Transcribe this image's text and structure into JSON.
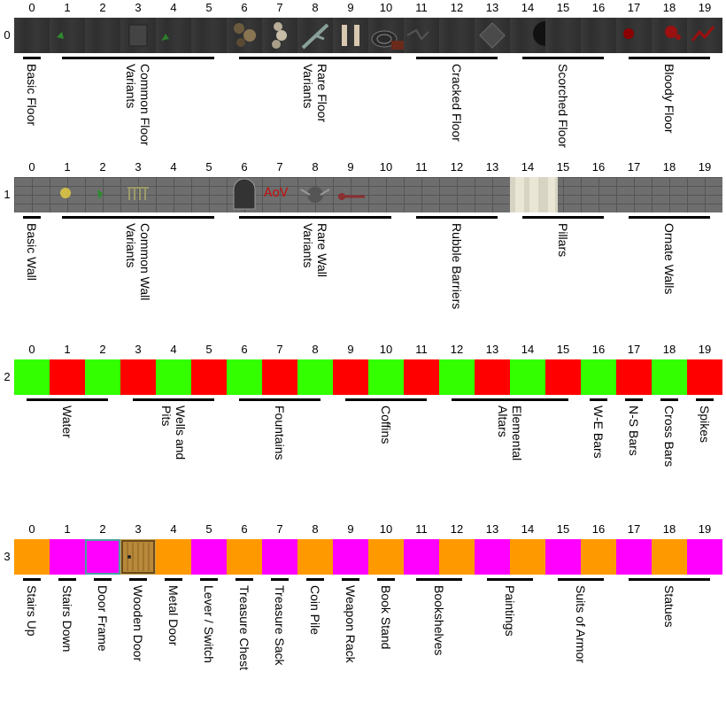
{
  "columns": [
    "0",
    "1",
    "2",
    "3",
    "4",
    "5",
    "6",
    "7",
    "8",
    "9",
    "10",
    "11",
    "12",
    "13",
    "14",
    "15",
    "16",
    "17",
    "18",
    "19"
  ],
  "rows": [
    {
      "index": "0",
      "kind": "floor",
      "groups": [
        {
          "start": 0,
          "end": 0,
          "lines": [
            "Basic Floor"
          ]
        },
        {
          "start": 1,
          "end": 5,
          "lines": [
            "Common Floor",
            "Variants"
          ]
        },
        {
          "start": 6,
          "end": 10,
          "lines": [
            "Rare Floor",
            "Variants"
          ]
        },
        {
          "start": 11,
          "end": 13,
          "lines": [
            "Cracked Floor"
          ]
        },
        {
          "start": 14,
          "end": 16,
          "lines": [
            "Scorched Floor"
          ]
        },
        {
          "start": 17,
          "end": 19,
          "lines": [
            "Bloody Floor"
          ]
        }
      ]
    },
    {
      "index": "1",
      "kind": "wall",
      "groups": [
        {
          "start": 0,
          "end": 0,
          "lines": [
            "Basic Wall"
          ]
        },
        {
          "start": 1,
          "end": 5,
          "lines": [
            "Common Wall",
            "Variants"
          ]
        },
        {
          "start": 6,
          "end": 10,
          "lines": [
            "Rare Wall",
            "Variants"
          ]
        },
        {
          "start": 11,
          "end": 13,
          "lines": [
            "Rubble Barriers"
          ]
        },
        {
          "start": 14,
          "end": 16,
          "lines": [
            "Pillars"
          ]
        },
        {
          "start": 17,
          "end": 19,
          "lines": [
            "Ornate Walls"
          ]
        }
      ]
    },
    {
      "index": "2",
      "kind": "placeholder",
      "tile_colors": [
        "#33ff00",
        "#ff0000",
        "#33ff00",
        "#ff0000",
        "#33ff00",
        "#ff0000",
        "#33ff00",
        "#ff0000",
        "#33ff00",
        "#ff0000",
        "#33ff00",
        "#ff0000",
        "#33ff00",
        "#ff0000",
        "#33ff00",
        "#ff0000",
        "#33ff00",
        "#ff0000",
        "#33ff00",
        "#ff0000"
      ],
      "groups": [
        {
          "start": 0,
          "end": 2,
          "lines": [
            "Water"
          ]
        },
        {
          "start": 3,
          "end": 5,
          "lines": [
            "Wells and",
            "Pits"
          ]
        },
        {
          "start": 6,
          "end": 8,
          "lines": [
            "Fountains"
          ]
        },
        {
          "start": 9,
          "end": 11,
          "lines": [
            "Coffins"
          ]
        },
        {
          "start": 12,
          "end": 15,
          "lines": [
            "Elemental",
            "Altars"
          ]
        },
        {
          "start": 16,
          "end": 16,
          "lines": [
            "W-E Bars"
          ]
        },
        {
          "start": 17,
          "end": 17,
          "lines": [
            "N-S Bars"
          ]
        },
        {
          "start": 18,
          "end": 18,
          "lines": [
            "Cross Bars"
          ]
        },
        {
          "start": 19,
          "end": 19,
          "lines": [
            "Spikes"
          ]
        }
      ]
    },
    {
      "index": "3",
      "kind": "placeholder",
      "tile_colors": [
        "#ff9900",
        "#ff00ff",
        "#ff00ff",
        "#c8a050",
        "#ff9900",
        "#ff00ff",
        "#ff9900",
        "#ff00ff",
        "#ff9900",
        "#ff00ff",
        "#ff9900",
        "#ff00ff",
        "#ff9900",
        "#ff00ff",
        "#ff9900",
        "#ff00ff",
        "#ff9900",
        "#ff00ff",
        "#ff9900",
        "#ff00ff"
      ],
      "groups": [
        {
          "start": 0,
          "end": 0,
          "lines": [
            "Stairs Up"
          ]
        },
        {
          "start": 1,
          "end": 1,
          "lines": [
            "Stairs Down"
          ]
        },
        {
          "start": 2,
          "end": 2,
          "lines": [
            "Door Frame"
          ]
        },
        {
          "start": 3,
          "end": 3,
          "lines": [
            "Wooden Door"
          ]
        },
        {
          "start": 4,
          "end": 4,
          "lines": [
            "Metal Door"
          ]
        },
        {
          "start": 5,
          "end": 5,
          "lines": [
            "Lever / Switch"
          ]
        },
        {
          "start": 6,
          "end": 6,
          "lines": [
            "Treasure Chest"
          ]
        },
        {
          "start": 7,
          "end": 7,
          "lines": [
            "Treasure Sack"
          ]
        },
        {
          "start": 8,
          "end": 8,
          "lines": [
            "Coin Pile"
          ]
        },
        {
          "start": 9,
          "end": 9,
          "lines": [
            "Weapon Rack"
          ]
        },
        {
          "start": 10,
          "end": 10,
          "lines": [
            "Book Stand"
          ]
        },
        {
          "start": 11,
          "end": 12,
          "lines": [
            "Bookshelves"
          ]
        },
        {
          "start": 13,
          "end": 14,
          "lines": [
            "Paintings"
          ]
        },
        {
          "start": 15,
          "end": 16,
          "lines": [
            "Suits of Armor"
          ]
        },
        {
          "start": 17,
          "end": 19,
          "lines": [
            "Statues"
          ]
        }
      ]
    }
  ]
}
